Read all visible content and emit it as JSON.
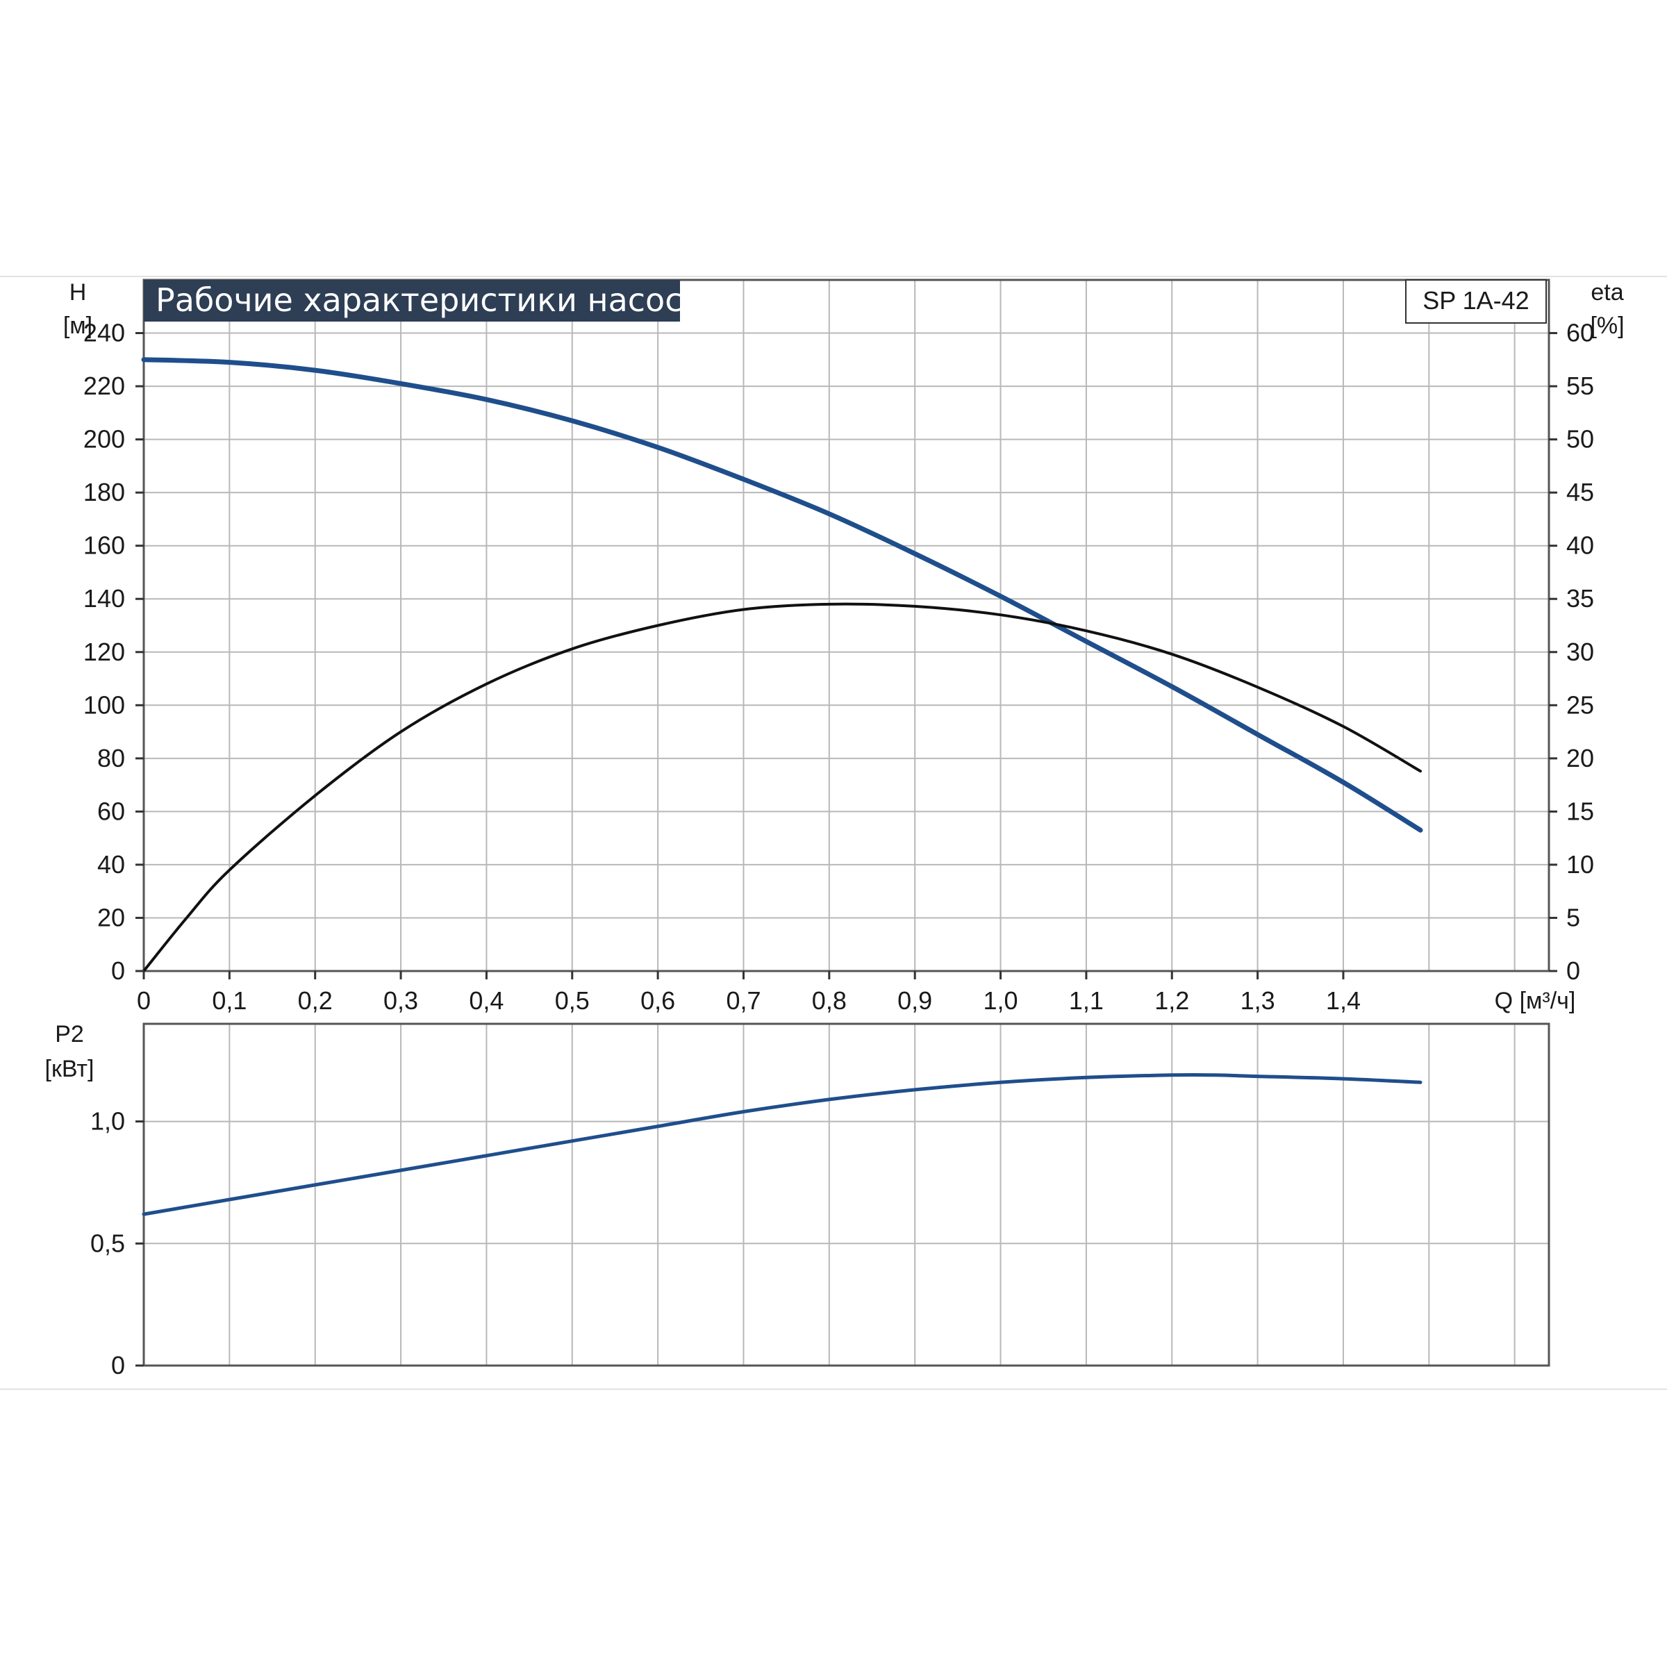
{
  "chart_data": [
    {
      "type": "line",
      "title": "Рабочие характеристики насоса",
      "model_label": "SP 1A-42",
      "left_axis": {
        "label_line1": "H",
        "label_line2": "[м]",
        "ticks": [
          "0",
          "20",
          "40",
          "60",
          "80",
          "100",
          "120",
          "140",
          "160",
          "180",
          "200",
          "220",
          "240"
        ],
        "ylim": [
          0,
          260
        ]
      },
      "right_axis": {
        "label_line1": "eta",
        "label_line2": "[%]",
        "ticks": [
          "0",
          "5",
          "10",
          "15",
          "20",
          "25",
          "30",
          "35",
          "40",
          "45",
          "50",
          "55",
          "60"
        ],
        "ylim": [
          0,
          65
        ]
      },
      "x_axis": {
        "label": "Q [м³/ч]",
        "ticks": [
          "0",
          "0,1",
          "0,2",
          "0,3",
          "0,4",
          "0,5",
          "0,6",
          "0,7",
          "0,8",
          "0,9",
          "1,0",
          "1,1",
          "1,2",
          "1,3",
          "1,4"
        ],
        "xlim": [
          0,
          1.64
        ]
      },
      "grid": true,
      "series": [
        {
          "name": "H",
          "axis": "left",
          "color": "#1f4e8c",
          "x": [
            0,
            0.1,
            0.2,
            0.3,
            0.4,
            0.5,
            0.6,
            0.7,
            0.8,
            0.9,
            1.0,
            1.1,
            1.2,
            1.3,
            1.4,
            1.49
          ],
          "y": [
            230,
            229,
            226,
            221,
            215,
            207,
            197,
            185,
            172,
            157,
            141,
            124,
            107,
            89,
            71,
            53
          ]
        },
        {
          "name": "eta",
          "axis": "right",
          "color": "#111111",
          "x": [
            0,
            0.05,
            0.1,
            0.2,
            0.3,
            0.4,
            0.5,
            0.6,
            0.7,
            0.8,
            0.9,
            1.0,
            1.1,
            1.2,
            1.3,
            1.4,
            1.49
          ],
          "y": [
            0,
            5,
            9.5,
            16.5,
            22.5,
            27,
            30.3,
            32.5,
            34,
            34.5,
            34.3,
            33.5,
            32,
            29.8,
            26.7,
            23,
            18.8
          ]
        }
      ]
    },
    {
      "type": "line",
      "left_axis": {
        "label_line1": "P2",
        "label_line2": "[кВт]",
        "ticks": [
          "0",
          "0,5",
          "1,0"
        ],
        "ylim": [
          0,
          1.4
        ]
      },
      "xlim": [
        0,
        1.64
      ],
      "grid": true,
      "series": [
        {
          "name": "P2",
          "axis": "left",
          "color": "#1f4e8c",
          "x": [
            0,
            0.1,
            0.2,
            0.3,
            0.4,
            0.5,
            0.6,
            0.7,
            0.8,
            0.9,
            1.0,
            1.1,
            1.2,
            1.25,
            1.3,
            1.4,
            1.49
          ],
          "y": [
            0.62,
            0.68,
            0.74,
            0.8,
            0.86,
            0.92,
            0.98,
            1.04,
            1.09,
            1.13,
            1.16,
            1.18,
            1.19,
            1.19,
            1.185,
            1.175,
            1.16
          ]
        }
      ]
    }
  ]
}
